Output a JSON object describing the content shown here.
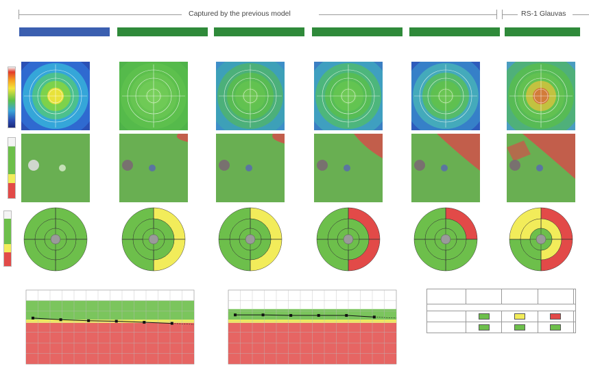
{
  "header": {
    "left_caption": "Captured by the previous model",
    "right_caption": "RS-1 Glauvas"
  },
  "colors": {
    "exam_bar_blue": "#3b5fb0",
    "exam_bar_green": "#2f8a3a",
    "normal_green": "#6dbf4b",
    "borderline_yellow": "#f2ec5a",
    "abnormal_red": "#e24a48",
    "fovea_gray": "#9a9a9a"
  },
  "exams": [
    {
      "bar_color": "blue",
      "title": "",
      "subtitle": "",
      "subtitle2": ""
    },
    {
      "bar_color": "green",
      "title": "",
      "subtitle": "",
      "subtitle2": ""
    },
    {
      "bar_color": "green",
      "title": "",
      "subtitle": "",
      "subtitle2": ""
    },
    {
      "bar_color": "green",
      "title": "",
      "subtitle": "",
      "subtitle2": ""
    },
    {
      "bar_color": "green",
      "title": "",
      "subtitle": "",
      "subtitle2": ""
    },
    {
      "bar_color": "green",
      "title": "",
      "subtitle": "",
      "subtitle2": ""
    }
  ],
  "rows": {
    "thickness_map_label": "",
    "deviation_map_label": "",
    "sector_map_label": "",
    "trend_label": "",
    "summary_label": ""
  },
  "sector_charts": [
    {
      "sectors": [
        "green",
        "green",
        "green",
        "green",
        "green",
        "green",
        "green",
        "green"
      ]
    },
    {
      "sectors": [
        "yellow",
        "yellow",
        "green",
        "green",
        "green",
        "green",
        "green",
        "green"
      ]
    },
    {
      "sectors": [
        "yellow",
        "yellow",
        "green",
        "green",
        "green",
        "green",
        "green",
        "green"
      ]
    },
    {
      "sectors": [
        "red",
        "red",
        "green",
        "green",
        "green",
        "green",
        "green",
        "green"
      ]
    },
    {
      "sectors": [
        "red",
        "green",
        "green",
        "green",
        "green",
        "green",
        "green",
        "green"
      ]
    },
    {
      "sectors": [
        "red",
        "red",
        "yellow",
        "green",
        "green",
        "green",
        "yellow",
        "yellow"
      ]
    }
  ],
  "chart_data": [
    {
      "type": "line",
      "title": "",
      "x": [
        1,
        2,
        3,
        4,
        5,
        6
      ],
      "series": [
        {
          "values": [
            87,
            84,
            82,
            81,
            79,
            77
          ]
        }
      ],
      "ylim": [
        0,
        140
      ],
      "bands": {
        "red_max": 78,
        "yellow_max": 84,
        "green_max": 120
      }
    },
    {
      "type": "line",
      "title": "",
      "x": [
        1,
        2,
        3,
        4,
        5,
        6
      ],
      "series": [
        {
          "values": [
            93,
            93,
            92,
            92,
            92,
            89
          ]
        }
      ],
      "ylim": [
        0,
        140
      ],
      "bands": {
        "red_max": 78,
        "yellow_max": 84,
        "green_max": 104
      }
    }
  ],
  "summary_table": {
    "rows": [
      {
        "badges": [
          "green",
          "yellow",
          "red"
        ]
      },
      {
        "badges": [
          "green",
          "green",
          "green"
        ]
      }
    ]
  }
}
